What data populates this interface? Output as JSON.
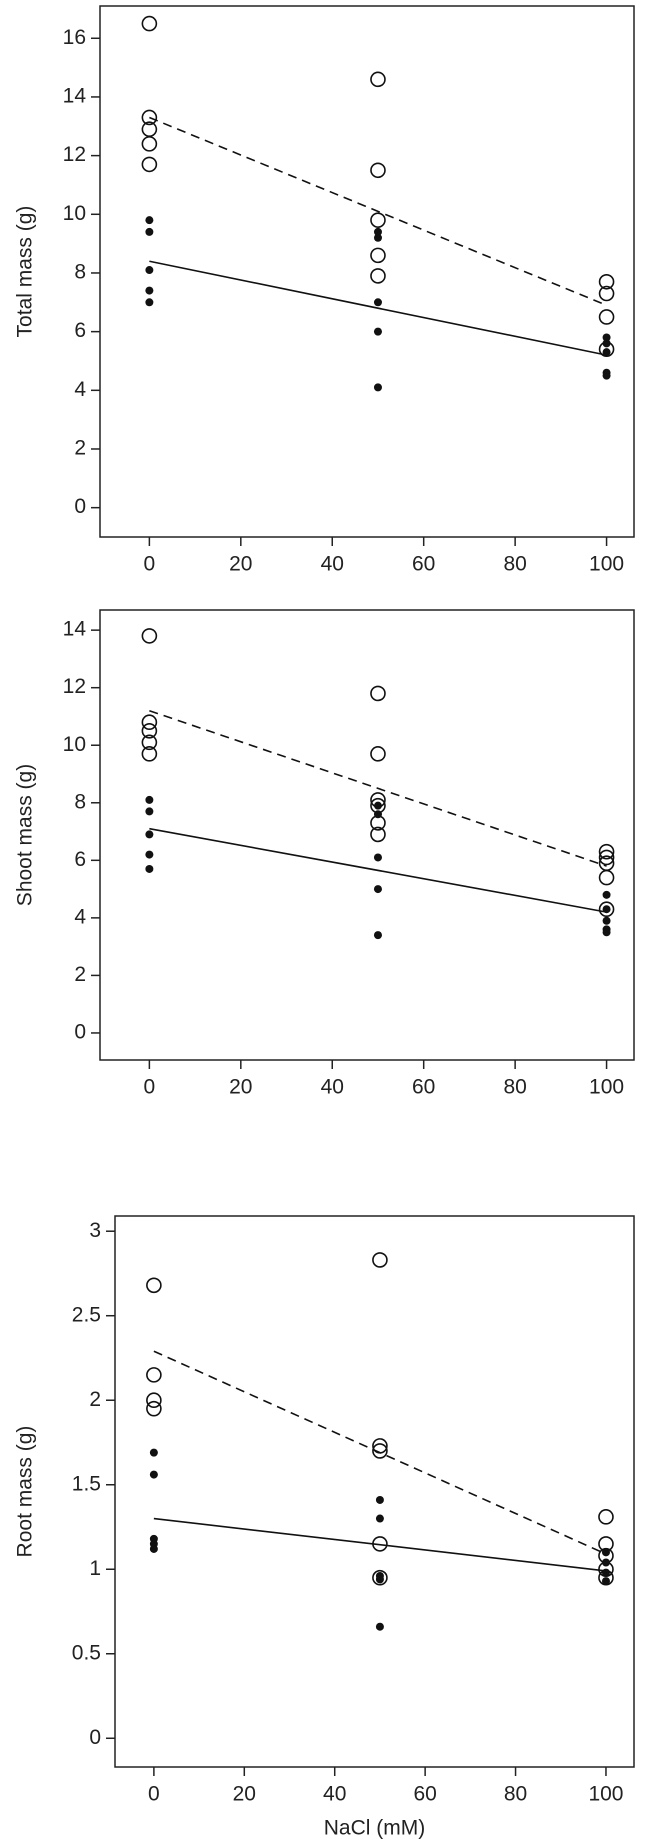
{
  "chart_data": [
    {
      "type": "scatter",
      "y_label": "Total mass (g)",
      "xlim": [
        -10.8,
        106
      ],
      "ylim": [
        -1,
        17.1
      ],
      "xticks": [
        0,
        20,
        40,
        60,
        80,
        100
      ],
      "yticks": [
        0,
        2,
        4,
        6,
        8,
        10,
        12,
        14,
        16
      ],
      "series": [
        {
          "style": "open",
          "x": [
            0,
            0,
            0,
            0,
            0,
            50,
            50,
            50,
            50,
            50,
            100,
            100,
            100,
            100
          ],
          "values": [
            16.5,
            13.3,
            12.9,
            12.4,
            11.7,
            14.6,
            11.5,
            9.8,
            8.6,
            7.9,
            7.7,
            7.3,
            6.5,
            5.4
          ]
        },
        {
          "style": "filled",
          "x": [
            0,
            0,
            0,
            0,
            0,
            50,
            50,
            50,
            50,
            50,
            100,
            100,
            100,
            100,
            100
          ],
          "values": [
            9.8,
            9.4,
            8.1,
            7.4,
            7.0,
            9.4,
            9.2,
            7.0,
            6.0,
            4.1,
            5.8,
            5.6,
            5.3,
            4.6,
            4.5
          ]
        },
        {
          "style": "dashed",
          "x": [
            0,
            100
          ],
          "values": [
            13.3,
            6.9
          ]
        },
        {
          "style": "solid",
          "x": [
            0,
            100
          ],
          "values": [
            8.4,
            5.2
          ]
        }
      ]
    },
    {
      "type": "scatter",
      "y_label": "Shoot mass (g)",
      "xlim": [
        -10.8,
        106
      ],
      "ylim": [
        -0.94,
        14.7
      ],
      "xticks": [
        0,
        20,
        40,
        60,
        80,
        100
      ],
      "yticks": [
        0,
        2,
        4,
        6,
        8,
        10,
        12,
        14
      ],
      "series": [
        {
          "style": "open",
          "x": [
            0,
            0,
            0,
            0,
            0,
            50,
            50,
            50,
            50,
            50,
            50,
            100,
            100,
            100,
            100,
            100
          ],
          "values": [
            13.8,
            10.8,
            10.5,
            10.1,
            9.7,
            11.8,
            9.7,
            8.1,
            7.9,
            7.3,
            6.9,
            6.3,
            6.1,
            5.9,
            5.4,
            4.3
          ]
        },
        {
          "style": "filled",
          "x": [
            0,
            0,
            0,
            0,
            0,
            50,
            50,
            50,
            50,
            50,
            100,
            100,
            100,
            100,
            100
          ],
          "values": [
            8.1,
            7.7,
            6.9,
            6.2,
            5.7,
            7.9,
            7.6,
            6.1,
            5.0,
            3.4,
            4.8,
            4.3,
            3.9,
            3.6,
            3.5
          ]
        },
        {
          "style": "dashed",
          "x": [
            0,
            100
          ],
          "values": [
            11.2,
            5.8
          ]
        },
        {
          "style": "solid",
          "x": [
            0,
            100
          ],
          "values": [
            7.1,
            4.2
          ]
        }
      ]
    },
    {
      "type": "scatter",
      "y_label": "Root mass (g)",
      "x_label": "NaCl (mM)",
      "xlim": [
        -8.6,
        106.2
      ],
      "ylim": [
        -0.17,
        3.09
      ],
      "xticks": [
        0,
        20,
        40,
        60,
        80,
        100
      ],
      "yticks": [
        0,
        0.5,
        1,
        1.5,
        2,
        2.5,
        3
      ],
      "series": [
        {
          "style": "open",
          "x": [
            0,
            0,
            0,
            0,
            50,
            50,
            50,
            50,
            50,
            100,
            100,
            100,
            100,
            100
          ],
          "values": [
            2.68,
            2.15,
            2.0,
            1.95,
            2.83,
            1.73,
            1.7,
            1.15,
            0.95,
            1.31,
            1.15,
            1.08,
            1.0,
            0.95
          ]
        },
        {
          "style": "filled",
          "x": [
            0,
            0,
            0,
            0,
            0,
            50,
            50,
            50,
            50,
            50,
            100,
            100,
            100,
            100
          ],
          "values": [
            1.69,
            1.56,
            1.18,
            1.15,
            1.12,
            1.41,
            1.3,
            0.96,
            0.94,
            0.66,
            1.1,
            1.04,
            0.98,
            0.93
          ]
        },
        {
          "style": "dashed",
          "x": [
            0,
            100
          ],
          "values": [
            2.29,
            1.09
          ]
        },
        {
          "style": "solid",
          "x": [
            0,
            100
          ],
          "values": [
            1.3,
            0.99
          ]
        }
      ]
    }
  ]
}
